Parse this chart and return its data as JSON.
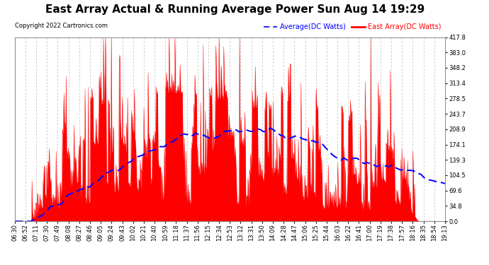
{
  "title": "East Array Actual & Running Average Power Sun Aug 14 19:29",
  "copyright": "Copyright 2022 Cartronics.com",
  "legend_avg": "Average(DC Watts)",
  "legend_east": "East Array(DC Watts)",
  "ymax": 417.8,
  "ymin": 0.0,
  "yticks": [
    0.0,
    34.8,
    69.6,
    104.5,
    139.3,
    174.1,
    208.9,
    243.7,
    278.5,
    313.4,
    348.2,
    383.0,
    417.8
  ],
  "bg_color": "#ffffff",
  "grid_color": "#bbbbbb",
  "red_color": "#ff0000",
  "blue_color": "#0000ff",
  "title_fontsize": 11,
  "tick_fontsize": 6,
  "n_points": 820
}
